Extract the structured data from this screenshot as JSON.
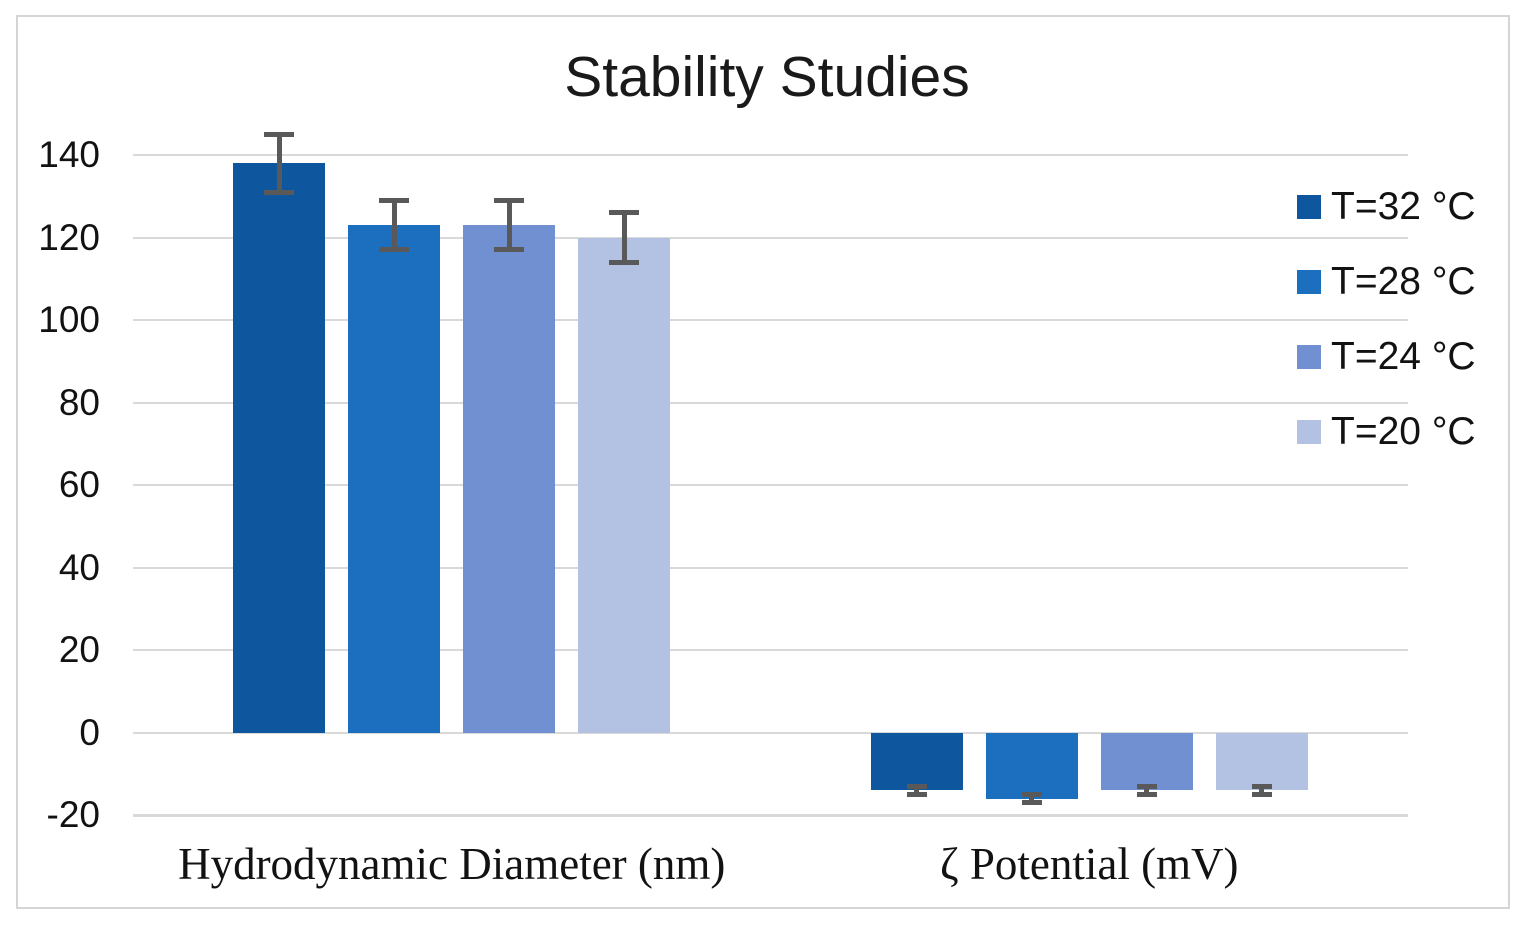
{
  "chart_data": {
    "type": "bar",
    "title": "Stability Studies",
    "categories": [
      "Hydrodynamic Diameter (nm)",
      "ζ Potential (mV)"
    ],
    "series": [
      {
        "name": "T=32 °C",
        "color": "#0E569D",
        "values": [
          138,
          -14
        ],
        "errors": [
          7,
          1
        ]
      },
      {
        "name": "T=28 °C",
        "color": "#1C6FBF",
        "values": [
          123,
          -16
        ],
        "errors": [
          6,
          1
        ]
      },
      {
        "name": "T=24 °C",
        "color": "#7090D2",
        "values": [
          123,
          -14
        ],
        "errors": [
          6,
          1
        ]
      },
      {
        "name": "T=20 °C",
        "color": "#B3C1E3",
        "values": [
          120,
          -14
        ],
        "errors": [
          6,
          1
        ]
      }
    ],
    "y_axis": {
      "min": -20,
      "max": 140,
      "step": 20,
      "ticks": [
        140,
        120,
        100,
        80,
        60,
        40,
        20,
        0,
        -20
      ]
    },
    "legend_position": "right",
    "grid": true
  },
  "style": {
    "gridline_color": "#D9D9D9",
    "error_bar_color": "#595959",
    "text_color": "#121212",
    "border_color": "#D5D5D5",
    "background": "#FFFFFF"
  }
}
